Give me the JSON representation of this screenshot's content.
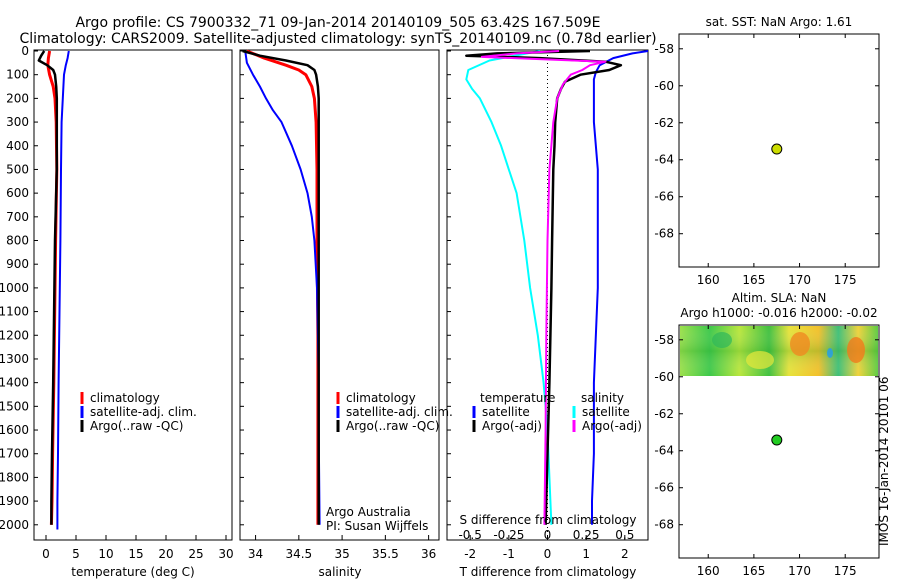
{
  "header": {
    "line1": "Argo profile: CS 7900332_71 09-Jan-2014 20140109_505 63.42S 167.509E",
    "line2": "Climatology: CARS2009. Satellite-adjusted climatology: synTS_20140109.nc (0.78d earlier)"
  },
  "side_stamp": "IMOS 16-Jan-2014 20101 06",
  "colors": {
    "climatology": "#ff0000",
    "satellite": "#0000ff",
    "argo": "#000000",
    "sat_salinity": "#00ffff",
    "argo_salinity": "#ff00ff",
    "argo_marker": "#ccdd00",
    "sla_marker": "#22cc22"
  },
  "chart_data": [
    {
      "id": "temperature",
      "type": "line",
      "xlabel": "temperature (deg C)",
      "xticks": [
        "0",
        "5",
        "10",
        "15",
        "20",
        "25",
        "30"
      ],
      "xtick_values": [
        0,
        5,
        10,
        15,
        20,
        25,
        30
      ],
      "xlim": [
        -2,
        31
      ],
      "ylim": [
        2060,
        0
      ],
      "yticks": [
        0,
        100,
        200,
        300,
        400,
        500,
        600,
        700,
        800,
        900,
        1000,
        1100,
        1200,
        1300,
        1400,
        1500,
        1600,
        1700,
        1800,
        1900,
        2000
      ],
      "legend": [
        "climatology",
        "satellite-adj. clim.",
        "Argo(..raw -QC)"
      ],
      "series": [
        {
          "name": "climatology",
          "color": "#ff0000",
          "depth": [
            0,
            30,
            60,
            100,
            150,
            200,
            300,
            500,
            800,
            1000,
            1400,
            1700,
            1900,
            2000
          ],
          "x": [
            0.6,
            0.4,
            0.3,
            0.6,
            1.2,
            1.5,
            1.7,
            1.8,
            1.6,
            1.5,
            1.3,
            1.1,
            1.0,
            0.9
          ]
        },
        {
          "name": "satellite-adj. clim.",
          "color": "#0000ff",
          "depth": [
            0,
            30,
            60,
            100,
            150,
            200,
            300,
            500,
            800,
            1000,
            1400,
            1700,
            1900,
            2020
          ],
          "x": [
            3.8,
            3.6,
            3.3,
            3.0,
            2.9,
            2.8,
            2.6,
            2.5,
            2.4,
            2.3,
            2.1,
            2.0,
            1.9,
            1.9
          ]
        },
        {
          "name": "Argo(..raw -QC)",
          "color": "#000000",
          "depth": [
            0,
            20,
            40,
            60,
            80,
            100,
            150,
            200,
            300,
            500,
            800,
            1000,
            1400,
            1700,
            1900,
            2000
          ],
          "x": [
            -0.3,
            -0.8,
            -1.2,
            0.2,
            1.2,
            1.5,
            1.7,
            1.8,
            1.8,
            1.8,
            1.5,
            1.4,
            1.2,
            1.0,
            0.9,
            0.9
          ]
        }
      ]
    },
    {
      "id": "salinity",
      "type": "line",
      "xlabel": "salinity",
      "xticks": [
        "34",
        "34.5",
        "35",
        "35.5",
        "36"
      ],
      "xtick_values": [
        34,
        34.5,
        35,
        35.5,
        36
      ],
      "xlim": [
        33.82,
        36.12
      ],
      "ylim": [
        2060,
        0
      ],
      "legend": [
        "climatology",
        "satellite-adj. clim.",
        "Argo(..raw -QC)"
      ],
      "annotation": [
        "Argo Australia",
        "PI: Susan Wijffels"
      ],
      "series": [
        {
          "name": "climatology",
          "color": "#ff0000",
          "depth": [
            0,
            30,
            60,
            80,
            100,
            150,
            200,
            300,
            500,
            800,
            1200,
            1600,
            2000
          ],
          "x": [
            33.9,
            34.1,
            34.35,
            34.5,
            34.58,
            34.65,
            34.68,
            34.7,
            34.71,
            34.71,
            34.72,
            34.72,
            34.72
          ]
        },
        {
          "name": "satellite-adj. clim.",
          "color": "#0000ff",
          "depth": [
            0,
            50,
            100,
            150,
            200,
            250,
            300,
            400,
            500,
            600,
            700,
            800,
            1000,
            1200,
            1400,
            1600,
            2000
          ],
          "x": [
            33.88,
            33.9,
            33.97,
            34.05,
            34.12,
            34.2,
            34.3,
            34.42,
            34.52,
            34.6,
            34.65,
            34.68,
            34.71,
            34.72,
            34.73,
            34.73,
            34.74
          ]
        },
        {
          "name": "Argo(..raw -QC)",
          "color": "#000000",
          "depth": [
            0,
            20,
            40,
            60,
            80,
            100,
            150,
            200,
            300,
            500,
            800,
            1200,
            1600,
            2000
          ],
          "x": [
            33.85,
            34.05,
            34.35,
            34.6,
            34.68,
            34.7,
            34.72,
            34.73,
            34.73,
            34.73,
            34.73,
            34.73,
            34.73,
            34.73
          ]
        }
      ]
    },
    {
      "id": "difference",
      "type": "line",
      "xlabel": "T difference from climatology",
      "top_xlabel": "S difference from climatology",
      "xticks": [
        "-2",
        "-1",
        "0",
        "1",
        "2"
      ],
      "xtick_values": [
        -2,
        -1,
        0,
        1,
        2
      ],
      "top_xticks": [
        "-0.5",
        "-0.25",
        "0",
        "0.25",
        "0.5"
      ],
      "top_xtick_values": [
        -0.5,
        -0.25,
        0,
        0.25,
        0.5
      ],
      "xlim": [
        -2.6,
        2.6
      ],
      "ylim": [
        2060,
        0
      ],
      "legend_left": [
        "temperature",
        "satellite",
        "Argo(-adj)"
      ],
      "legend_right": [
        "salinity",
        "satellite",
        "Argo(-adj)"
      ],
      "series": [
        {
          "name": "T satellite",
          "color": "#0000ff",
          "depth": [
            0,
            10,
            30,
            60,
            90,
            120,
            150,
            200,
            300,
            500,
            800,
            1000,
            1400,
            1700,
            1900,
            2000
          ],
          "x": [
            2.6,
            2.2,
            1.7,
            1.35,
            1.25,
            1.2,
            1.2,
            1.2,
            1.2,
            1.3,
            1.3,
            1.3,
            1.2,
            1.2,
            1.15,
            1.15
          ]
        },
        {
          "name": "S satellite",
          "color": "#00ffff",
          "depth": [
            0,
            40,
            80,
            120,
            160,
            200,
            300,
            400,
            500,
            600,
            800,
            1000,
            1200,
            1400,
            1600,
            1800,
            2000
          ],
          "x": [
            -0.2,
            -1.5,
            -2.05,
            -2.1,
            -1.95,
            -1.75,
            -1.45,
            -1.2,
            -1.0,
            -0.8,
            -0.6,
            -0.45,
            -0.25,
            -0.1,
            0.0,
            0.05,
            0.1
          ]
        },
        {
          "name": "T Argo(-adj)",
          "color": "#000000",
          "depth": [
            0,
            10,
            20,
            30,
            45,
            60,
            80,
            100,
            130,
            160,
            200,
            300,
            400,
            500,
            800,
            1000,
            1400,
            1700,
            2000
          ],
          "x": [
            1.1,
            -1.3,
            -2.1,
            -0.2,
            1.5,
            1.9,
            1.6,
            0.85,
            0.45,
            0.35,
            0.25,
            0.2,
            0.18,
            0.15,
            0.12,
            0.1,
            0.05,
            0.0,
            -0.05
          ]
        },
        {
          "name": "S Argo(-adj)",
          "color": "#ff00ff",
          "depth": [
            0,
            10,
            25,
            45,
            60,
            80,
            100,
            140,
            200,
            300,
            500,
            800,
            1200,
            1600,
            2000
          ],
          "x": [
            0.3,
            -0.8,
            -1.7,
            1.5,
            1.1,
            0.9,
            0.6,
            0.4,
            0.25,
            0.15,
            0.05,
            0.0,
            -0.03,
            -0.05,
            -0.08
          ]
        }
      ]
    },
    {
      "id": "sst_map",
      "type": "scatter",
      "title": "sat. SST: NaN Argo: 1.61",
      "xticks": [
        "160",
        "165",
        "170",
        "175"
      ],
      "xtick_values": [
        160,
        165,
        170,
        175
      ],
      "yticks": [
        "-58",
        "-60",
        "-62",
        "-64",
        "-66",
        "-68"
      ],
      "ytick_values": [
        -58,
        -60,
        -62,
        -64,
        -66,
        -68
      ],
      "xlim": [
        156.8,
        178.7
      ],
      "ylim": [
        -69.8,
        -57.2
      ],
      "points": [
        {
          "lon": 167.509,
          "lat": -63.42
        }
      ]
    },
    {
      "id": "sla_map",
      "type": "heatmap",
      "title": "Altim. SLA: NaN",
      "title2": "Argo h1000: -0.016 h2000: -0.02",
      "xticks": [
        "160",
        "165",
        "170",
        "175"
      ],
      "xtick_values": [
        160,
        165,
        170,
        175
      ],
      "yticks": [
        "-58",
        "-60",
        "-62",
        "-64",
        "-66",
        "-68"
      ],
      "ytick_values": [
        -58,
        -60,
        -62,
        -64,
        -66,
        -68
      ],
      "xlim": [
        156.8,
        178.7
      ],
      "ylim": [
        -69.8,
        -57.2
      ],
      "points": [
        {
          "lon": 167.509,
          "lat": -63.42
        }
      ]
    }
  ]
}
